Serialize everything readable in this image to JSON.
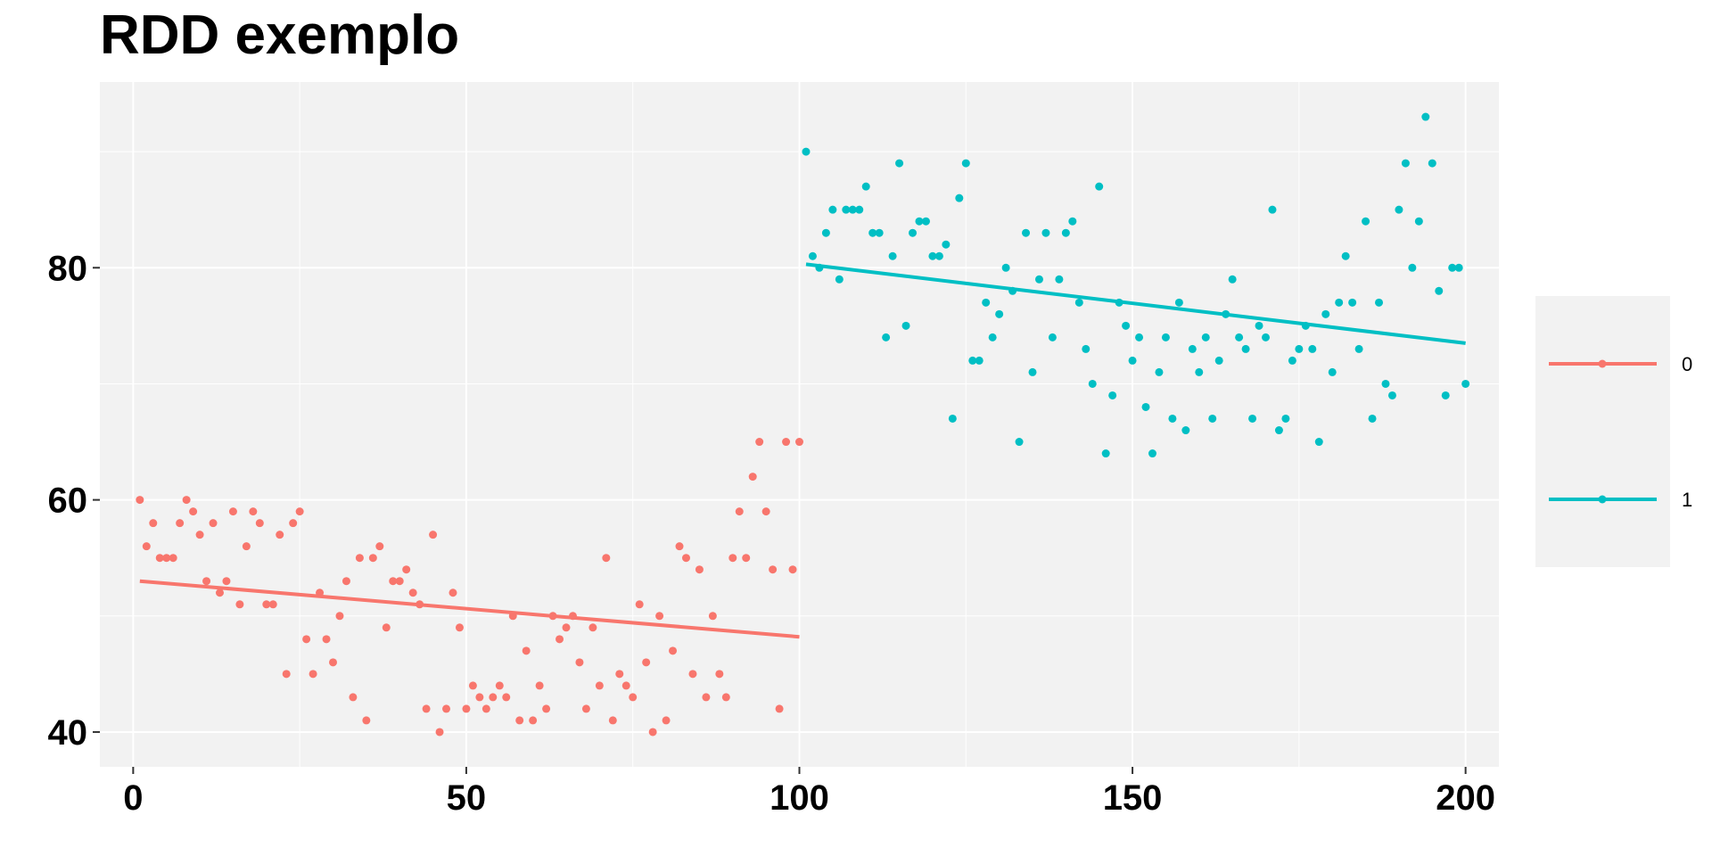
{
  "chart_data": {
    "type": "scatter",
    "title": "RDD exemplo",
    "xlabel": "",
    "ylabel": "",
    "xlim": [
      -5,
      205
    ],
    "ylim": [
      37,
      96
    ],
    "x_ticks": [
      0,
      50,
      100,
      150,
      200
    ],
    "x_tick_labels": [
      "0",
      "50",
      "100",
      "150",
      "200"
    ],
    "y_ticks": [
      40,
      60,
      80
    ],
    "y_tick_labels": [
      "40",
      "60",
      "80"
    ],
    "grid": true,
    "legend_position": "right",
    "series": [
      {
        "name": "0",
        "color": "#F8766D",
        "x": [
          1,
          2,
          3,
          4,
          5,
          6,
          7,
          8,
          9,
          10,
          11,
          12,
          13,
          14,
          15,
          16,
          17,
          18,
          19,
          20,
          21,
          22,
          23,
          24,
          25,
          26,
          27,
          28,
          29,
          30,
          31,
          32,
          33,
          34,
          35,
          36,
          37,
          38,
          39,
          40,
          41,
          42,
          43,
          44,
          45,
          46,
          47,
          48,
          49,
          50,
          51,
          52,
          53,
          54,
          55,
          56,
          57,
          58,
          59,
          60,
          61,
          62,
          63,
          64,
          65,
          66,
          67,
          68,
          69,
          70,
          71,
          72,
          73,
          74,
          75,
          76,
          77,
          78,
          79,
          80,
          81,
          82,
          83,
          84,
          85,
          86,
          87,
          88,
          89,
          90,
          91,
          92,
          93,
          94,
          95,
          96,
          97,
          98,
          99,
          100
        ],
        "y": [
          60,
          56,
          58,
          55,
          55,
          55,
          58,
          60,
          59,
          57,
          53,
          58,
          52,
          53,
          59,
          51,
          56,
          59,
          58,
          51,
          51,
          57,
          45,
          58,
          59,
          48,
          45,
          52,
          48,
          46,
          50,
          53,
          43,
          55,
          41,
          55,
          56,
          49,
          53,
          53,
          54,
          52,
          51,
          42,
          57,
          40,
          42,
          52,
          49,
          42,
          44,
          43,
          42,
          43,
          44,
          43,
          50,
          41,
          47,
          41,
          44,
          42,
          50,
          48,
          49,
          50,
          46,
          42,
          49,
          44,
          55,
          41,
          45,
          44,
          43,
          51,
          46,
          40,
          50,
          41,
          47,
          56,
          55,
          45,
          54,
          43,
          50,
          45,
          43,
          55,
          59,
          55,
          62,
          65,
          59,
          54,
          42,
          65,
          54,
          65
        ],
        "fit": [
          [
            1,
            53.0
          ],
          [
            100,
            48.2
          ]
        ]
      },
      {
        "name": "1",
        "color": "#00BFC4",
        "x": [
          101,
          102,
          103,
          104,
          105,
          106,
          107,
          108,
          109,
          110,
          111,
          112,
          113,
          114,
          115,
          116,
          117,
          118,
          119,
          120,
          121,
          122,
          123,
          124,
          125,
          126,
          127,
          128,
          129,
          130,
          131,
          132,
          133,
          134,
          135,
          136,
          137,
          138,
          139,
          140,
          141,
          142,
          143,
          144,
          145,
          146,
          147,
          148,
          149,
          150,
          151,
          152,
          153,
          154,
          155,
          156,
          157,
          158,
          159,
          160,
          161,
          162,
          163,
          164,
          165,
          166,
          167,
          168,
          169,
          170,
          171,
          172,
          173,
          174,
          175,
          176,
          177,
          178,
          179,
          180,
          181,
          182,
          183,
          184,
          185,
          186,
          187,
          188,
          189,
          190,
          191,
          192,
          193,
          194,
          195,
          196,
          197,
          198,
          199,
          200
        ],
        "y": [
          90,
          81,
          80,
          83,
          85,
          79,
          85,
          85,
          85,
          87,
          83,
          83,
          74,
          81,
          89,
          75,
          83,
          84,
          84,
          81,
          81,
          82,
          67,
          86,
          89,
          72,
          72,
          77,
          74,
          76,
          80,
          78,
          65,
          83,
          71,
          79,
          83,
          74,
          79,
          83,
          84,
          77,
          73,
          70,
          87,
          64,
          69,
          77,
          75,
          72,
          74,
          68,
          64,
          71,
          74,
          67,
          77,
          66,
          73,
          71,
          74,
          67,
          72,
          76,
          79,
          74,
          73,
          67,
          75,
          74,
          85,
          66,
          67,
          72,
          73,
          75,
          73,
          65,
          76,
          71,
          77,
          81,
          77,
          73,
          84,
          67,
          77,
          70,
          69,
          85,
          89,
          80,
          84,
          93,
          89,
          78,
          69,
          80,
          80,
          70
        ],
        "fit": [
          [
            101,
            80.3
          ],
          [
            200,
            73.5
          ]
        ]
      }
    ]
  }
}
